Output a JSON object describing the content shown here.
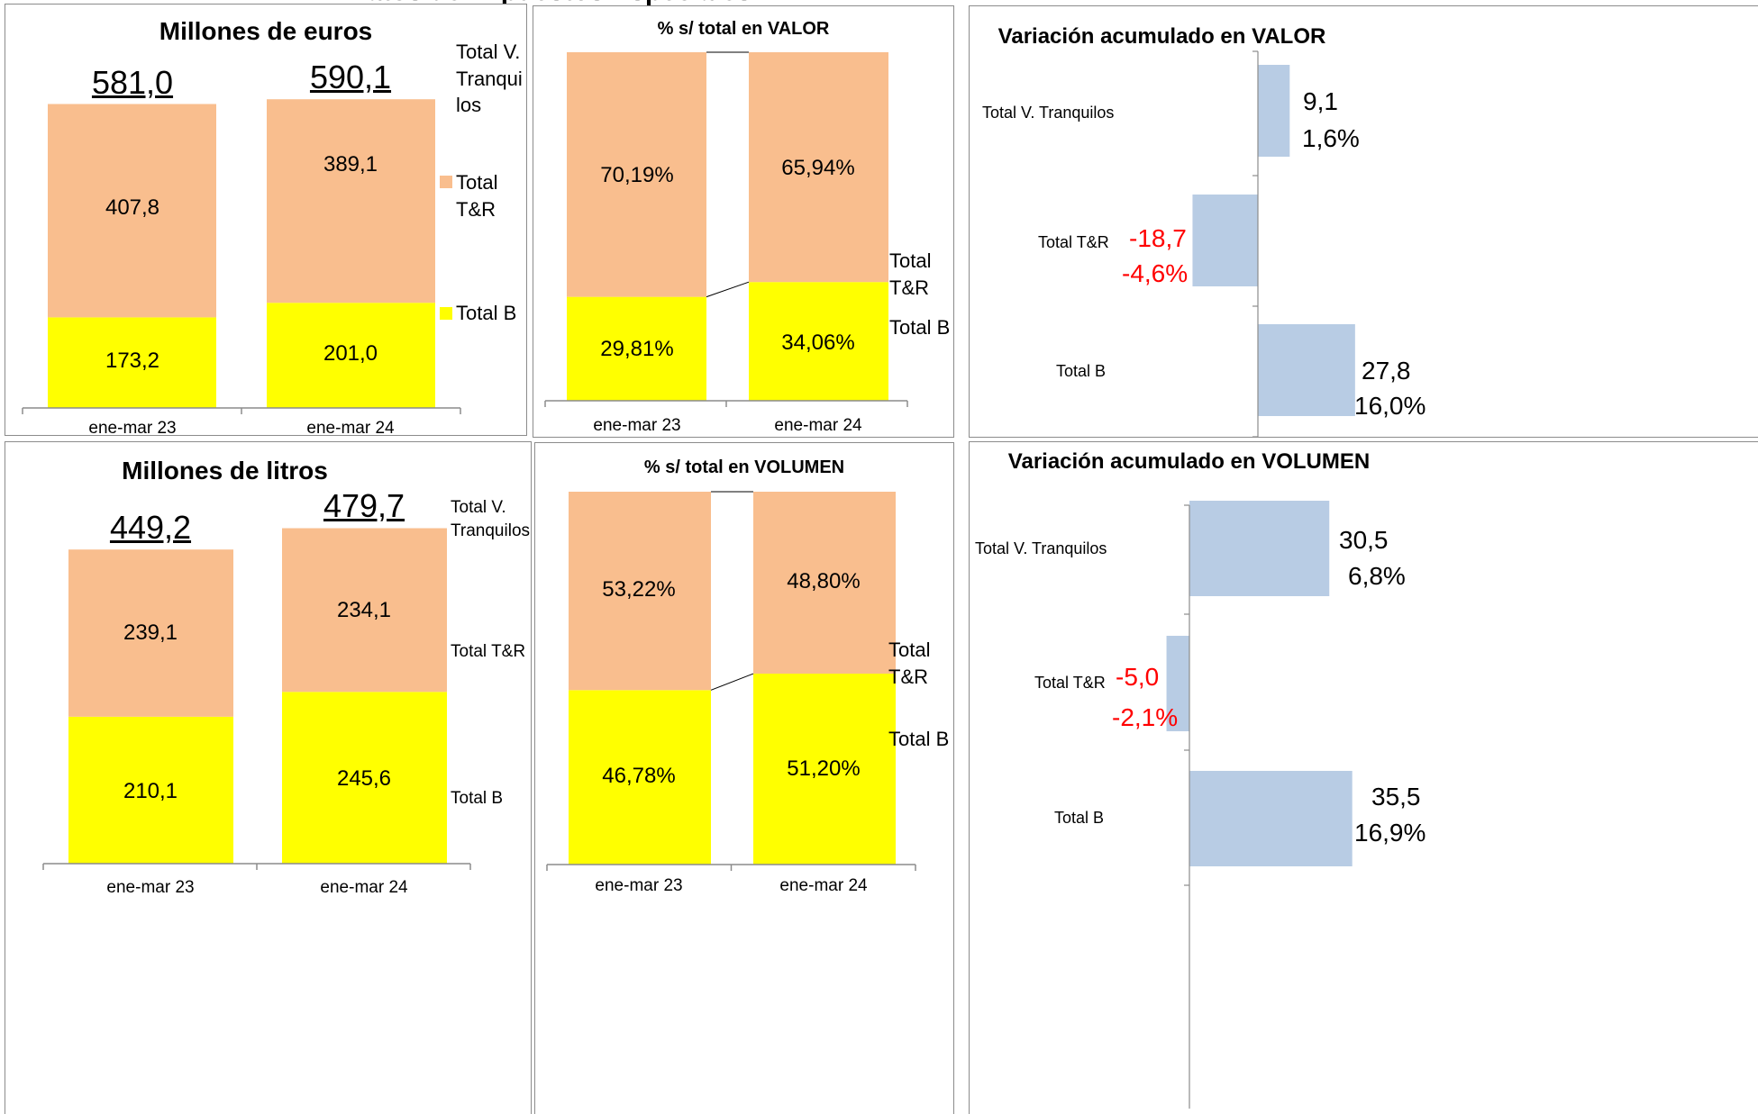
{
  "colors": {
    "tr": "#f9be8e",
    "b": "#ffff00",
    "var_bar": "#b8cce4",
    "negative": "#ff0000"
  },
  "page_title": "Datos de Impuestos Especiales",
  "chart_data": [
    {
      "type": "bar",
      "title": "Millones de euros",
      "categories": [
        "ene-mar 23",
        "ene-mar 24"
      ],
      "series": [
        {
          "name": "Total B",
          "values": [
            173.2,
            201.0
          ],
          "labels": [
            "173,2",
            "201,0"
          ]
        },
        {
          "name": "Total T&R",
          "values": [
            407.8,
            389.1
          ],
          "labels": [
            "407,8",
            "389,1"
          ]
        }
      ],
      "totals": [
        581.0,
        590.1
      ],
      "total_labels": [
        "581,0",
        "590,1"
      ],
      "total_series_name": "Total V. Tranquilos",
      "stacked": true,
      "legend_position": "right"
    },
    {
      "type": "bar",
      "title": "% s/ total en VALOR",
      "categories": [
        "ene-mar 23",
        "ene-mar 24"
      ],
      "series": [
        {
          "name": "Total B",
          "values": [
            29.81,
            34.06
          ],
          "labels": [
            "29,81%",
            "34,06%"
          ]
        },
        {
          "name": "Total T&R",
          "values": [
            70.19,
            65.94
          ],
          "labels": [
            "70,19%",
            "65,94%"
          ]
        }
      ],
      "stacked": true,
      "percent": true,
      "legend_position": "right"
    },
    {
      "type": "bar",
      "orientation": "horizontal",
      "title": "Variación acumulado en VALOR",
      "categories": [
        "Total V. Tranquilos",
        "Total T&R",
        "Total B"
      ],
      "values": [
        9.1,
        -18.7,
        27.8
      ],
      "value_labels": [
        "9,1",
        "-18,7",
        "27,8"
      ],
      "pct_labels": [
        "1,6%",
        "-4,6%",
        "16,0%"
      ]
    },
    {
      "type": "bar",
      "title": "Millones de litros",
      "categories": [
        "ene-mar 23",
        "ene-mar 24"
      ],
      "series": [
        {
          "name": "Total B",
          "values": [
            210.1,
            245.6
          ],
          "labels": [
            "210,1",
            "245,6"
          ]
        },
        {
          "name": "Total T&R",
          "values": [
            239.1,
            234.1
          ],
          "labels": [
            "239,1",
            "234,1"
          ]
        }
      ],
      "totals": [
        449.2,
        479.7
      ],
      "total_labels": [
        "449,2",
        "479,7"
      ],
      "total_series_name": "Total V. Tranquilos",
      "stacked": true,
      "legend_position": "right"
    },
    {
      "type": "bar",
      "title": "% s/ total en VOLUMEN",
      "categories": [
        "ene-mar 23",
        "ene-mar 24"
      ],
      "series": [
        {
          "name": "Total B",
          "values": [
            46.78,
            51.2
          ],
          "labels": [
            "46,78%",
            "51,20%"
          ]
        },
        {
          "name": "Total T&R",
          "values": [
            53.22,
            48.8
          ],
          "labels": [
            "53,22%",
            "48,80%"
          ]
        }
      ],
      "stacked": true,
      "percent": true,
      "legend_position": "right"
    },
    {
      "type": "bar",
      "orientation": "horizontal",
      "title": "Variación acumulado en VOLUMEN",
      "categories": [
        "Total V. Tranquilos",
        "Total T&R",
        "Total B"
      ],
      "values": [
        30.5,
        -5.0,
        35.5
      ],
      "value_labels": [
        "30,5",
        "-5,0",
        "35,5"
      ],
      "pct_labels": [
        "6,8%",
        "-2,1%",
        "16,9%"
      ]
    }
  ]
}
